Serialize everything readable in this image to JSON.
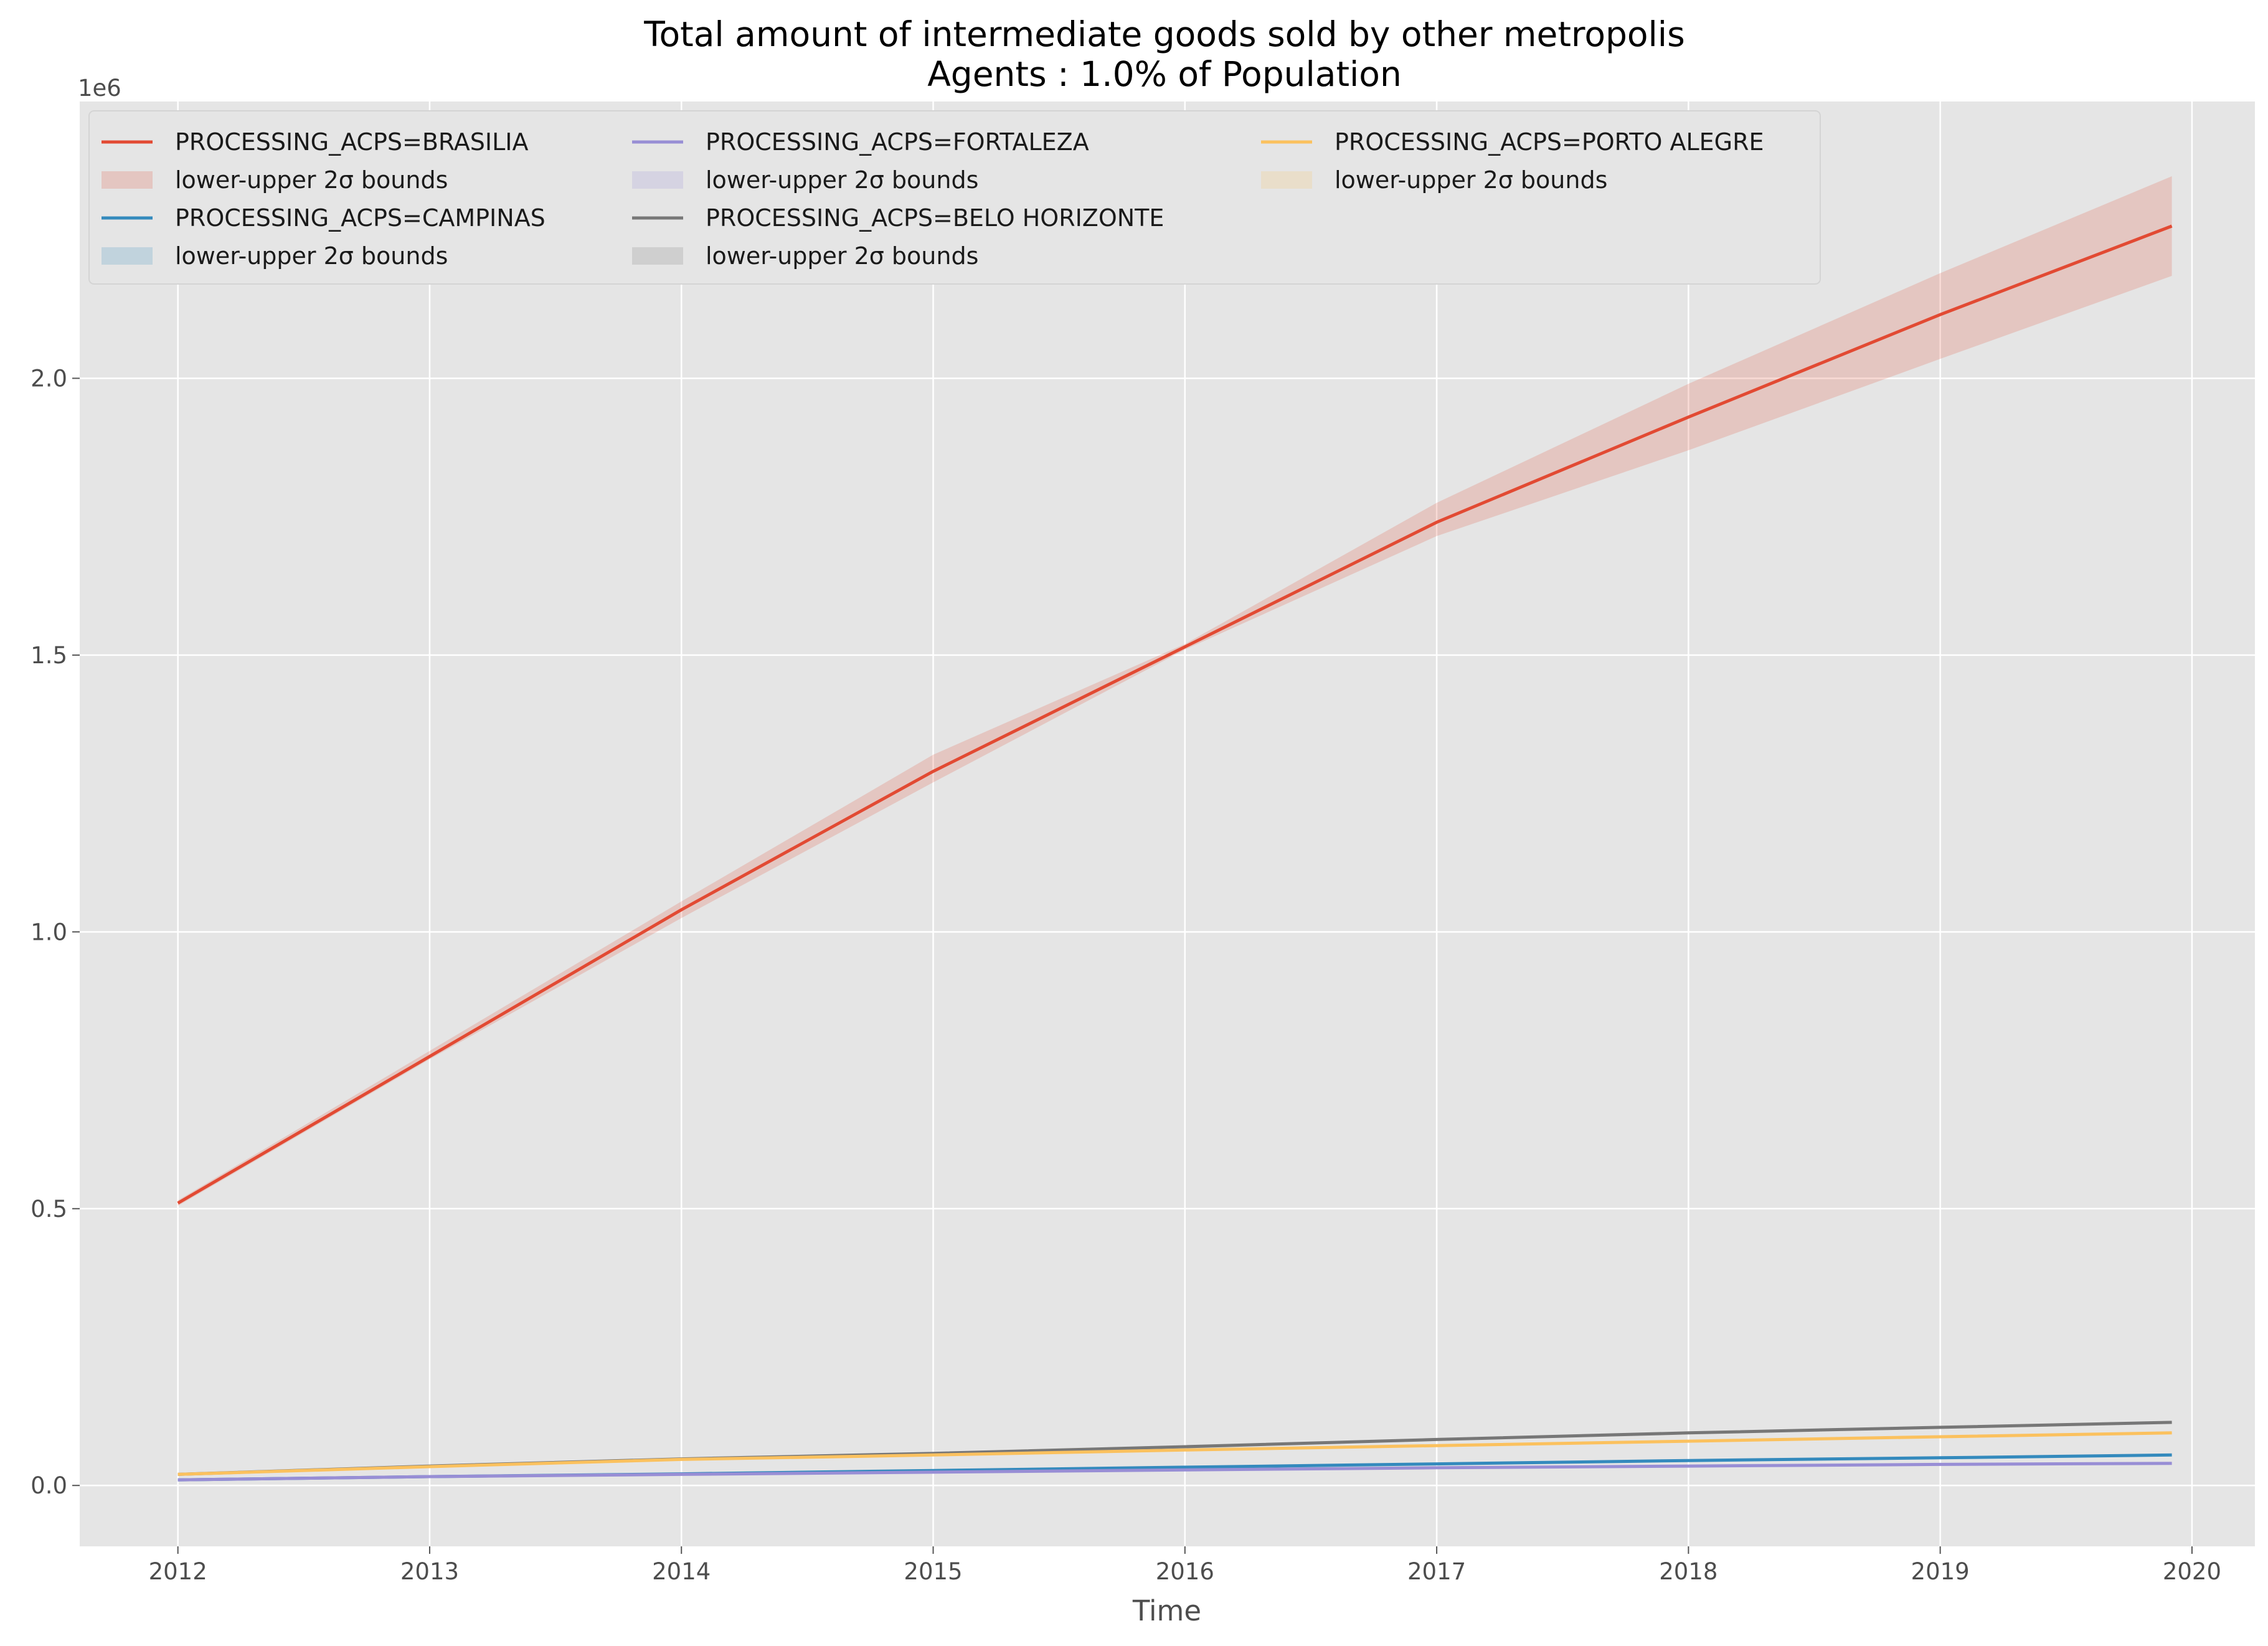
{
  "chart_data": {
    "type": "line",
    "title": "Total amount of intermediate goods sold by other metropolis",
    "subtitle": "Agents : 1.0% of Population",
    "xlabel": "Time",
    "ylabel": "",
    "y_offset_label": "1e6",
    "xlim": [
      2011.61,
      2020.25
    ],
    "ylim": [
      -110000,
      2500000
    ],
    "x_ticks": [
      2012,
      2013,
      2014,
      2015,
      2016,
      2017,
      2018,
      2019,
      2020
    ],
    "x_tick_labels": [
      "2012",
      "2013",
      "2014",
      "2015",
      "2016",
      "2017",
      "2018",
      "2019",
      "2020"
    ],
    "y_ticks": [
      0,
      500000,
      1000000,
      1500000,
      2000000
    ],
    "y_tick_labels": [
      "0.0",
      "0.5",
      "1.0",
      "1.5",
      "2.0"
    ],
    "grid": true,
    "legend_position": "top-left",
    "legend_columns": 3,
    "x": [
      2012.0,
      2013.0,
      2014.0,
      2015.0,
      2016.0,
      2017.0,
      2018.0,
      2019.0,
      2019.92
    ],
    "series": [
      {
        "name": "PROCESSING_ACPS=BRASILIA",
        "band_name": "lower-upper 2σ bounds",
        "color": "#E24A33",
        "values": [
          510000,
          775000,
          1040000,
          1290000,
          1515000,
          1740000,
          1930000,
          2115000,
          2275000
        ],
        "lower": [
          505000,
          770000,
          1025000,
          1270000,
          1510000,
          1715000,
          1870000,
          2035000,
          2185000
        ],
        "upper": [
          515000,
          785000,
          1055000,
          1320000,
          1520000,
          1775000,
          1990000,
          2190000,
          2365000
        ]
      },
      {
        "name": "PROCESSING_ACPS=CAMPINAS",
        "band_name": "lower-upper 2σ bounds",
        "color": "#348ABD",
        "values": [
          10000,
          16000,
          21000,
          27000,
          33000,
          39000,
          45000,
          50000,
          55000
        ],
        "lower": [
          9500,
          15000,
          20000,
          26000,
          32000,
          38000,
          44000,
          49000,
          54000
        ],
        "upper": [
          10500,
          17000,
          22000,
          28000,
          34000,
          40000,
          46000,
          51000,
          56000
        ]
      },
      {
        "name": "PROCESSING_ACPS=FORTALEZA",
        "band_name": "lower-upper 2σ bounds",
        "color": "#988ED5",
        "values": [
          10000,
          16000,
          20000,
          24000,
          28000,
          32000,
          35000,
          38000,
          40000
        ],
        "lower": [
          9500,
          15000,
          19000,
          23000,
          27000,
          31000,
          34000,
          37000,
          39000
        ],
        "upper": [
          10500,
          17000,
          21000,
          25000,
          29000,
          33000,
          36000,
          39000,
          41000
        ]
      },
      {
        "name": "PROCESSING_ACPS=BELO HORIZONTE",
        "band_name": "lower-upper 2σ bounds",
        "color": "#777777",
        "values": [
          20000,
          35000,
          48000,
          58000,
          70000,
          83000,
          95000,
          105000,
          114000
        ],
        "lower": [
          19000,
          34000,
          47000,
          57000,
          69000,
          82000,
          94000,
          104000,
          113000
        ],
        "upper": [
          21000,
          36000,
          49000,
          59000,
          71000,
          84000,
          96000,
          106000,
          115000
        ]
      },
      {
        "name": "PROCESSING_ACPS=PORTO ALEGRE",
        "band_name": "lower-upper 2σ bounds",
        "color": "#FBC15E",
        "values": [
          20000,
          34000,
          47000,
          55000,
          64000,
          72000,
          80000,
          88000,
          95000
        ],
        "lower": [
          19000,
          33000,
          46000,
          54000,
          63000,
          71000,
          79000,
          87000,
          94000
        ],
        "upper": [
          21000,
          35000,
          48000,
          56000,
          65000,
          73000,
          81000,
          89000,
          96000
        ]
      }
    ]
  }
}
